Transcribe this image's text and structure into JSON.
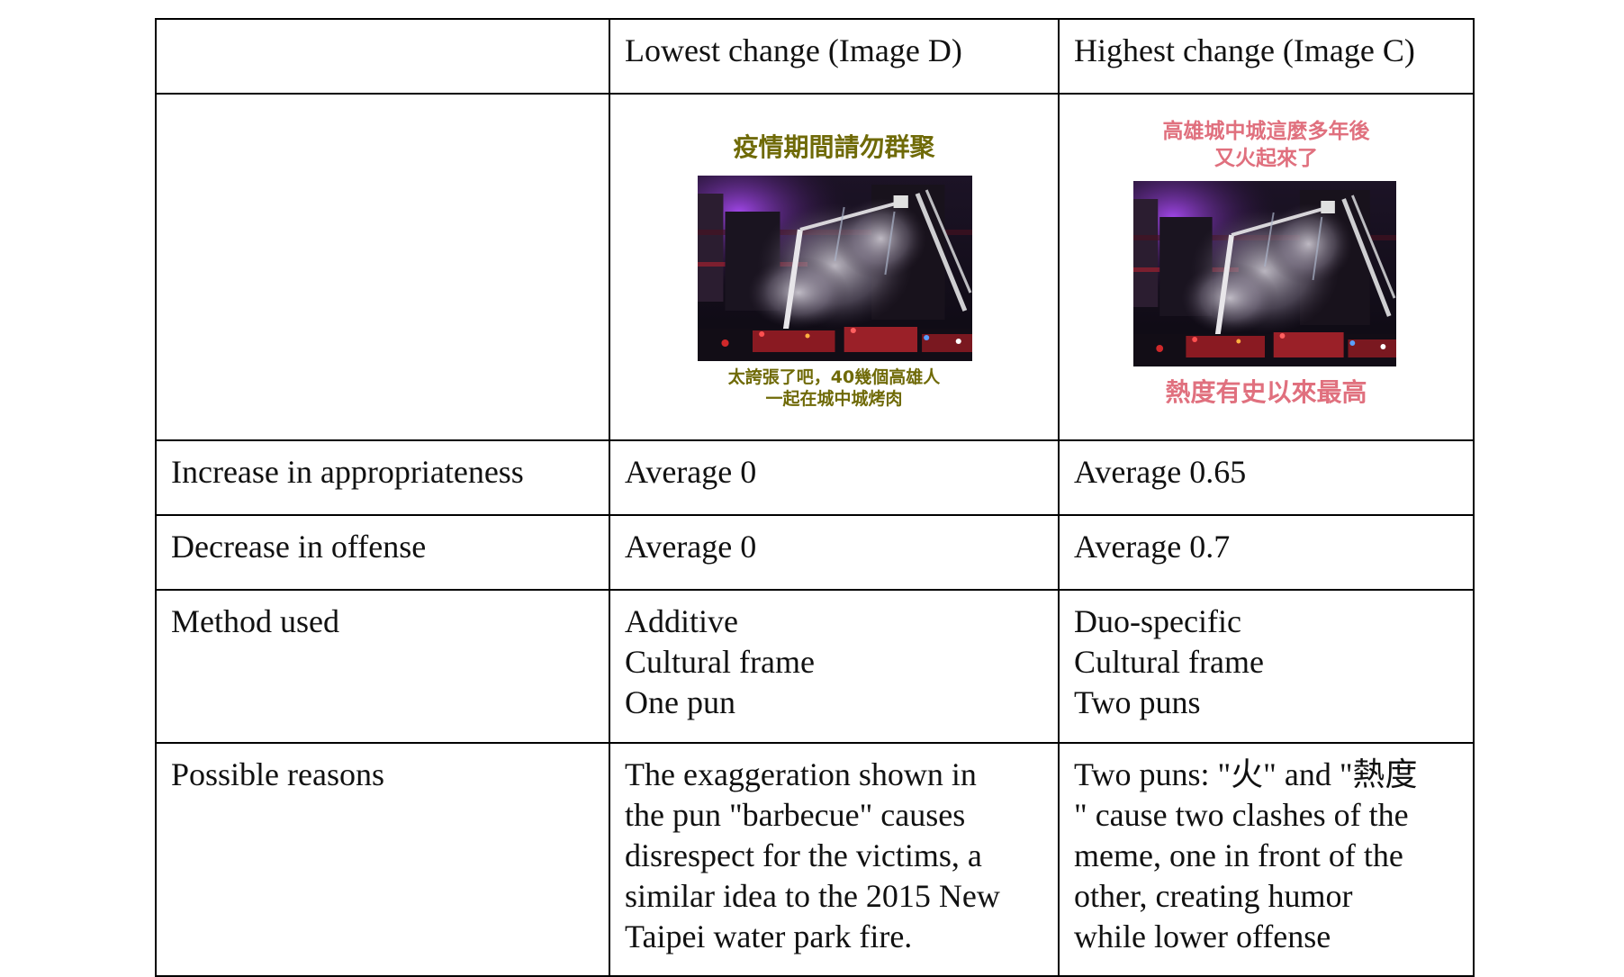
{
  "header": {
    "col1": "",
    "col2": "Lowest change (Image D)",
    "col3": "Highest change (Image C)"
  },
  "image_d": {
    "caption_top": "疫情期間請勿群聚",
    "caption_bottom_line1": "太誇張了吧，40幾個高雄人",
    "caption_bottom_line2": "一起在城中城烤肉",
    "caption_color": "#6f6a07"
  },
  "image_c": {
    "caption_top_line1": "高雄城中城這麼多年後",
    "caption_top_line2": "又火起來了",
    "caption_bottom": "熱度有史以來最高",
    "caption_color": "#e0707e"
  },
  "rows": {
    "appropriateness": {
      "label": "Increase in appropriateness",
      "d": "Average 0",
      "c": "Average 0.65"
    },
    "offense": {
      "label": "Decrease in offense",
      "d": "Average 0",
      "c": "Average 0.7"
    },
    "method": {
      "label": "Method used",
      "d": [
        "Additive",
        "Cultural frame",
        "One pun"
      ],
      "c": [
        "Duo-specific",
        "Cultural frame",
        "Two puns"
      ]
    },
    "reasons": {
      "label": "Possible reasons",
      "d": [
        "The exaggeration shown in",
        "the pun \"barbecue\" causes",
        "disrespect for the victims, a",
        "similar idea to the 2015 New",
        "Taipei water park fire."
      ],
      "c": [
        "Two puns: \"火\" and \"熱度",
        "\" cause two clashes of the",
        "meme, one in front of the",
        "other, creating humor",
        "while lower offense"
      ]
    }
  }
}
